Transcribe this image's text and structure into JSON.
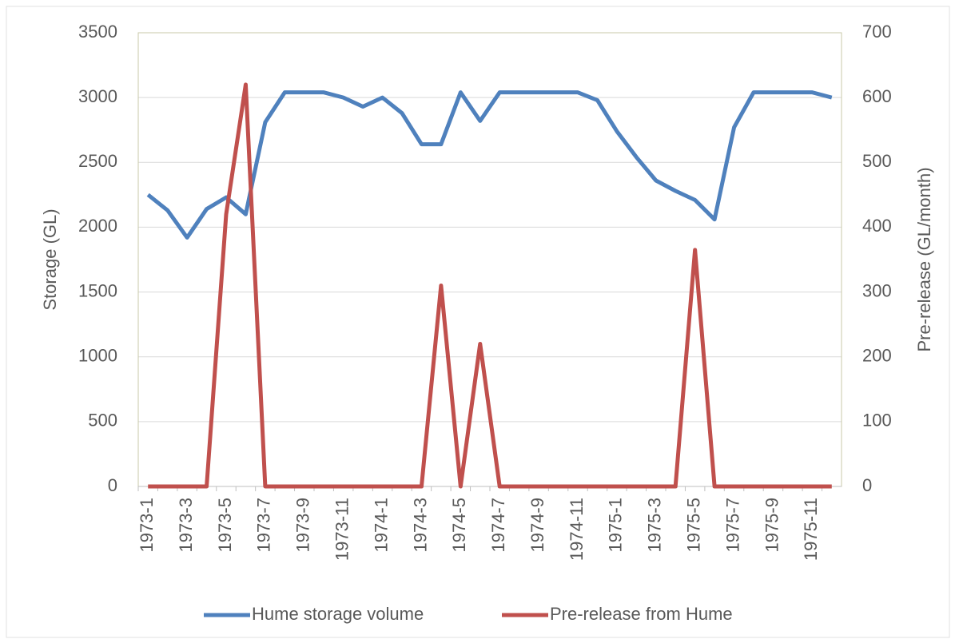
{
  "chart_data": {
    "type": "line",
    "categories": [
      "1973-1",
      null,
      "1973-3",
      null,
      "1973-5",
      null,
      "1973-7",
      null,
      "1973-9",
      null,
      "1973-11",
      null,
      "1974-1",
      null,
      "1974-3",
      null,
      "1974-5",
      null,
      "1974-7",
      null,
      "1974-9",
      null,
      "1974-11",
      null,
      "1975-1",
      null,
      "1975-3",
      null,
      "1975-5",
      null,
      "1975-7",
      null,
      "1975-9",
      null,
      "1975-11",
      null
    ],
    "series": [
      {
        "name": "Hume storage volume",
        "color": "#4f81bd",
        "values": [
          2250,
          2130,
          1920,
          2140,
          2230,
          2100,
          2810,
          3040,
          3040,
          3040,
          3000,
          2930,
          3000,
          2880,
          2640,
          2640,
          3040,
          2820,
          3040,
          3040,
          3040,
          3040,
          3040,
          2980,
          2740,
          2540,
          2360,
          2280,
          2210,
          2060,
          2770,
          3040,
          3040,
          3040,
          3040,
          3000
        ]
      },
      {
        "name": "Pre-release from Hume",
        "color": "#c0504d",
        "axis": "y2",
        "values": [
          0,
          0,
          0,
          0,
          420,
          620,
          0,
          0,
          0,
          0,
          0,
          0,
          0,
          0,
          0,
          310,
          0,
          220,
          0,
          0,
          0,
          0,
          0,
          0,
          0,
          0,
          0,
          0,
          365,
          0,
          0,
          0,
          0,
          0,
          0,
          0
        ]
      }
    ],
    "y_label": "Storage (GL)",
    "y2_label": "Pre-release (GL/month)",
    "ylim": [
      0,
      3500
    ],
    "yticks": [
      0,
      500,
      1000,
      1500,
      2000,
      2500,
      3000,
      3500
    ],
    "y2lim": [
      0,
      700
    ],
    "y2ticks": [
      0,
      100,
      200,
      300,
      400,
      500,
      600,
      700
    ],
    "grid": true,
    "legend": "bottom"
  }
}
